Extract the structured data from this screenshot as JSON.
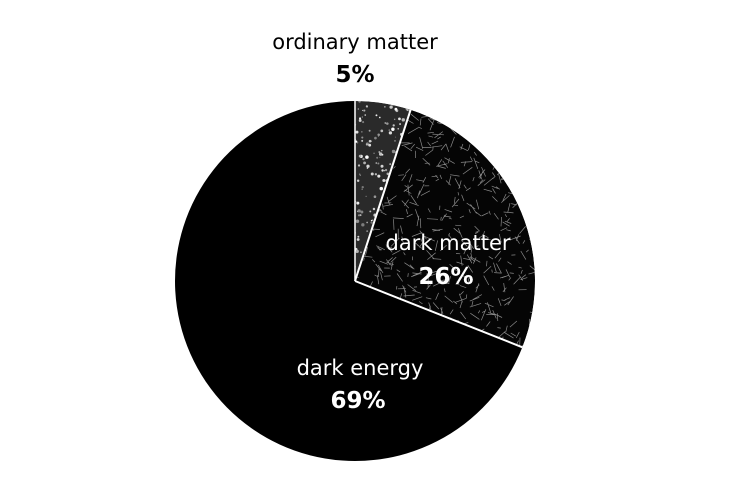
{
  "chart_data": {
    "type": "pie",
    "start_angle_deg": 0,
    "direction": "clockwise",
    "slices": [
      {
        "label": "ordinary matter",
        "value": 5,
        "value_label": "5%",
        "fill": "textured-gray",
        "label_color": "#000000"
      },
      {
        "label": "dark matter",
        "value": 26,
        "value_label": "26%",
        "fill": "textured-web",
        "label_color": "#ffffff"
      },
      {
        "label": "dark energy",
        "value": 69,
        "value_label": "69%",
        "fill": "#000000",
        "label_color": "#ffffff"
      }
    ],
    "separator_color": "#ffffff",
    "background": "#ffffff"
  }
}
